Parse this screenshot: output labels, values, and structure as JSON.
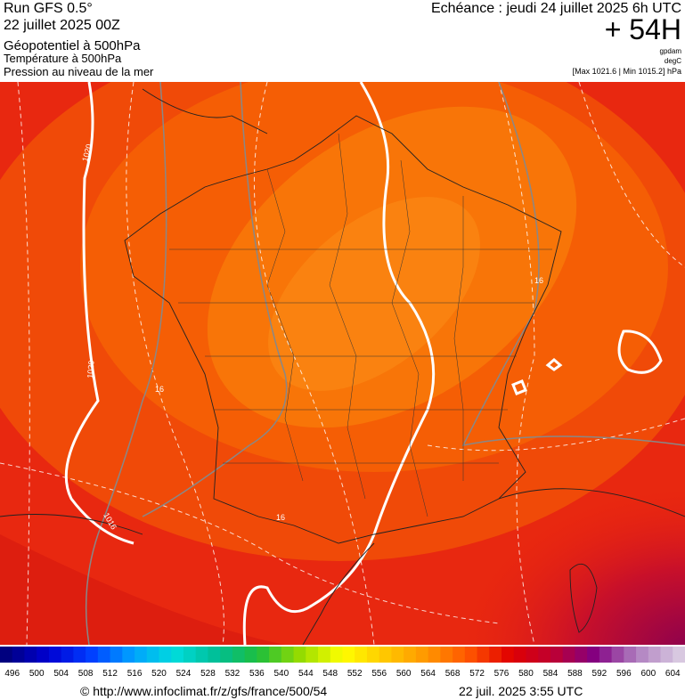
{
  "header": {
    "run": "Run GFS 0.5°",
    "run_date": "22 juillet 2025 00Z",
    "field": "Géopotentiel à 500hPa",
    "field2": "Température à 500hPa",
    "field3": "Pression au niveau de la mer",
    "valid": "Echéance : jeudi 24 juillet 2025 6h UTC",
    "lead": "+ 54H",
    "unit1": "gpdam",
    "unit2": "degC",
    "pressure_range": "[Max 1021.6 | Min 1015.2] hPa"
  },
  "map": {
    "contour_labels": [
      "1020",
      "1020",
      "1016",
      "16",
      "16",
      "16"
    ]
  },
  "legend": {
    "labels": [
      496,
      500,
      504,
      508,
      512,
      516,
      520,
      524,
      528,
      532,
      536,
      540,
      544,
      548,
      552,
      556,
      560,
      564,
      568,
      572,
      576,
      580,
      584,
      588,
      592,
      596,
      600,
      604
    ]
  },
  "footer": {
    "source": "© http://www.infoclimat.fr/z/gfs/france/500/54",
    "timestamp": "22 juil. 2025  3:55 UTC"
  }
}
